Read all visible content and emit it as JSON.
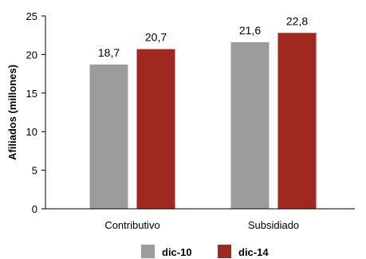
{
  "chart_data": {
    "type": "bar",
    "categories": [
      "Contributivo",
      "Subsidiado"
    ],
    "series": [
      {
        "name": "dic-10",
        "values": [
          18.7,
          21.6
        ],
        "labels": [
          "18,7",
          "21,6"
        ],
        "color": "#9c9c9c"
      },
      {
        "name": "dic-14",
        "values": [
          20.7,
          22.8
        ],
        "labels": [
          "20,7",
          "22,8"
        ],
        "color": "#a0281e"
      }
    ],
    "title": "",
    "xlabel": "",
    "ylabel": "Afiliados (millones)",
    "ylim": [
      0,
      25
    ],
    "yticks": [
      0,
      5,
      10,
      15,
      20,
      25
    ],
    "grid": false,
    "legend": "bottom-center"
  }
}
